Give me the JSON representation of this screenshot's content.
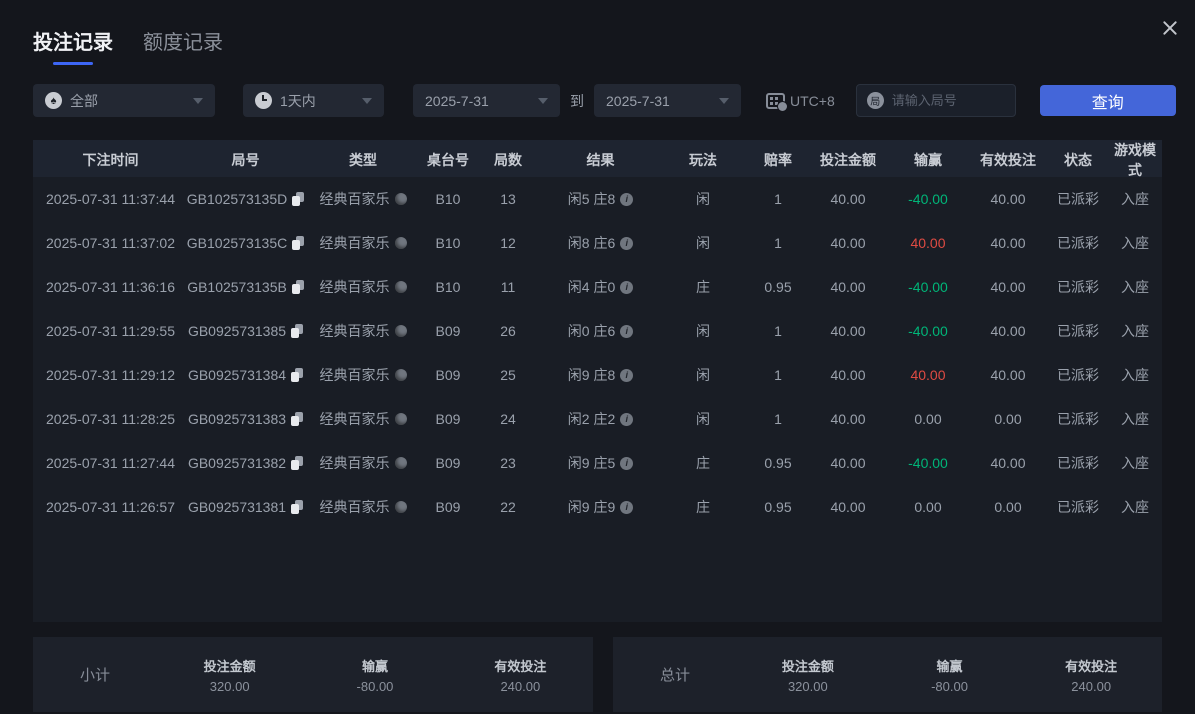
{
  "tabs": [
    {
      "label": "投注记录",
      "active": true
    },
    {
      "label": "额度记录",
      "active": false
    }
  ],
  "filters": {
    "game_type": {
      "value": "全部",
      "icon": "spade",
      "icon_glyph": "♠"
    },
    "time_range": {
      "value": "1天内",
      "icon": "clock"
    },
    "date_from": "2025-7-31",
    "to_label": "到",
    "date_to": "2025-7-31",
    "timezone_label": "UTC+8",
    "search": {
      "placeholder": "请输入局号",
      "icon_glyph": "局"
    },
    "query_button": "查询"
  },
  "icons": {
    "info_glyph": "i"
  },
  "table": {
    "columns": [
      "下注时间",
      "局号",
      "类型",
      "桌台号",
      "局数",
      "结果",
      "玩法",
      "赔率",
      "投注金额",
      "输赢",
      "有效投注",
      "状态",
      "游戏模式"
    ],
    "rows": [
      {
        "time": "2025-07-31 11:37:44",
        "round_id": "GB102573135D",
        "type": "经典百家乐",
        "table_no": "B10",
        "round": "13",
        "result": "闲5 庄8",
        "play": "闲",
        "odds": "1",
        "bet": "40.00",
        "win": "-40.00",
        "win_color": "green",
        "valid": "40.00",
        "status": "已派彩",
        "mode": "入座"
      },
      {
        "time": "2025-07-31 11:37:02",
        "round_id": "GB102573135C",
        "type": "经典百家乐",
        "table_no": "B10",
        "round": "12",
        "result": "闲8 庄6",
        "play": "闲",
        "odds": "1",
        "bet": "40.00",
        "win": "40.00",
        "win_color": "red",
        "valid": "40.00",
        "status": "已派彩",
        "mode": "入座"
      },
      {
        "time": "2025-07-31 11:36:16",
        "round_id": "GB102573135B",
        "type": "经典百家乐",
        "table_no": "B10",
        "round": "11",
        "result": "闲4 庄0",
        "play": "庄",
        "odds": "0.95",
        "bet": "40.00",
        "win": "-40.00",
        "win_color": "green",
        "valid": "40.00",
        "status": "已派彩",
        "mode": "入座"
      },
      {
        "time": "2025-07-31 11:29:55",
        "round_id": "GB0925731385",
        "type": "经典百家乐",
        "table_no": "B09",
        "round": "26",
        "result": "闲0 庄6",
        "play": "闲",
        "odds": "1",
        "bet": "40.00",
        "win": "-40.00",
        "win_color": "green",
        "valid": "40.00",
        "status": "已派彩",
        "mode": "入座"
      },
      {
        "time": "2025-07-31 11:29:12",
        "round_id": "GB0925731384",
        "type": "经典百家乐",
        "table_no": "B09",
        "round": "25",
        "result": "闲9 庄8",
        "play": "闲",
        "odds": "1",
        "bet": "40.00",
        "win": "40.00",
        "win_color": "red",
        "valid": "40.00",
        "status": "已派彩",
        "mode": "入座"
      },
      {
        "time": "2025-07-31 11:28:25",
        "round_id": "GB0925731383",
        "type": "经典百家乐",
        "table_no": "B09",
        "round": "24",
        "result": "闲2 庄2",
        "play": "闲",
        "odds": "1",
        "bet": "40.00",
        "win": "0.00",
        "win_color": "none",
        "valid": "0.00",
        "status": "已派彩",
        "mode": "入座"
      },
      {
        "time": "2025-07-31 11:27:44",
        "round_id": "GB0925731382",
        "type": "经典百家乐",
        "table_no": "B09",
        "round": "23",
        "result": "闲9 庄5",
        "play": "庄",
        "odds": "0.95",
        "bet": "40.00",
        "win": "-40.00",
        "win_color": "green",
        "valid": "40.00",
        "status": "已派彩",
        "mode": "入座"
      },
      {
        "time": "2025-07-31 11:26:57",
        "round_id": "GB0925731381",
        "type": "经典百家乐",
        "table_no": "B09",
        "round": "22",
        "result": "闲9 庄9",
        "play": "庄",
        "odds": "0.95",
        "bet": "40.00",
        "win": "0.00",
        "win_color": "none",
        "valid": "0.00",
        "status": "已派彩",
        "mode": "入座"
      }
    ]
  },
  "summary": {
    "subtotal": {
      "label": "小计",
      "items": [
        {
          "label": "投注金额",
          "value": "320.00",
          "color": "none"
        },
        {
          "label": "输赢",
          "value": "-80.00",
          "color": "green"
        },
        {
          "label": "有效投注",
          "value": "240.00",
          "color": "none"
        }
      ]
    },
    "total": {
      "label": "总计",
      "items": [
        {
          "label": "投注金额",
          "value": "320.00",
          "color": "none"
        },
        {
          "label": "输赢",
          "value": "-80.00",
          "color": "green"
        },
        {
          "label": "有效投注",
          "value": "240.00",
          "color": "none"
        }
      ]
    }
  },
  "colors": {
    "accent_blue": "#4466d9",
    "tab_underline": "#3d66f5",
    "loss_green": "#00b578",
    "win_red": "#df4b43",
    "background": "#14161c",
    "panel": "#191d25"
  }
}
